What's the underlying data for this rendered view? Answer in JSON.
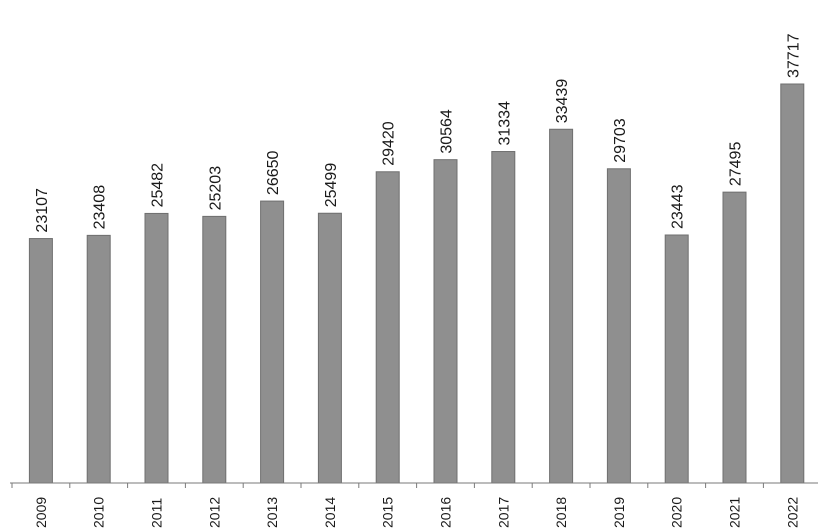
{
  "chart_data": {
    "type": "bar",
    "title": "",
    "xlabel": "",
    "ylabel": "",
    "categories": [
      "2009",
      "2010",
      "2011",
      "2012",
      "2013",
      "2014",
      "2015",
      "2016",
      "2017",
      "2018",
      "2019",
      "2020",
      "2021",
      "2022"
    ],
    "values": [
      23107,
      23408,
      25482,
      25203,
      26650,
      25499,
      29420,
      30564,
      31334,
      33439,
      29703,
      23443,
      27495,
      37717
    ],
    "ylim": [
      0,
      37717
    ],
    "grid": false,
    "legend": "none",
    "bar_color": "#8f8f8f"
  }
}
